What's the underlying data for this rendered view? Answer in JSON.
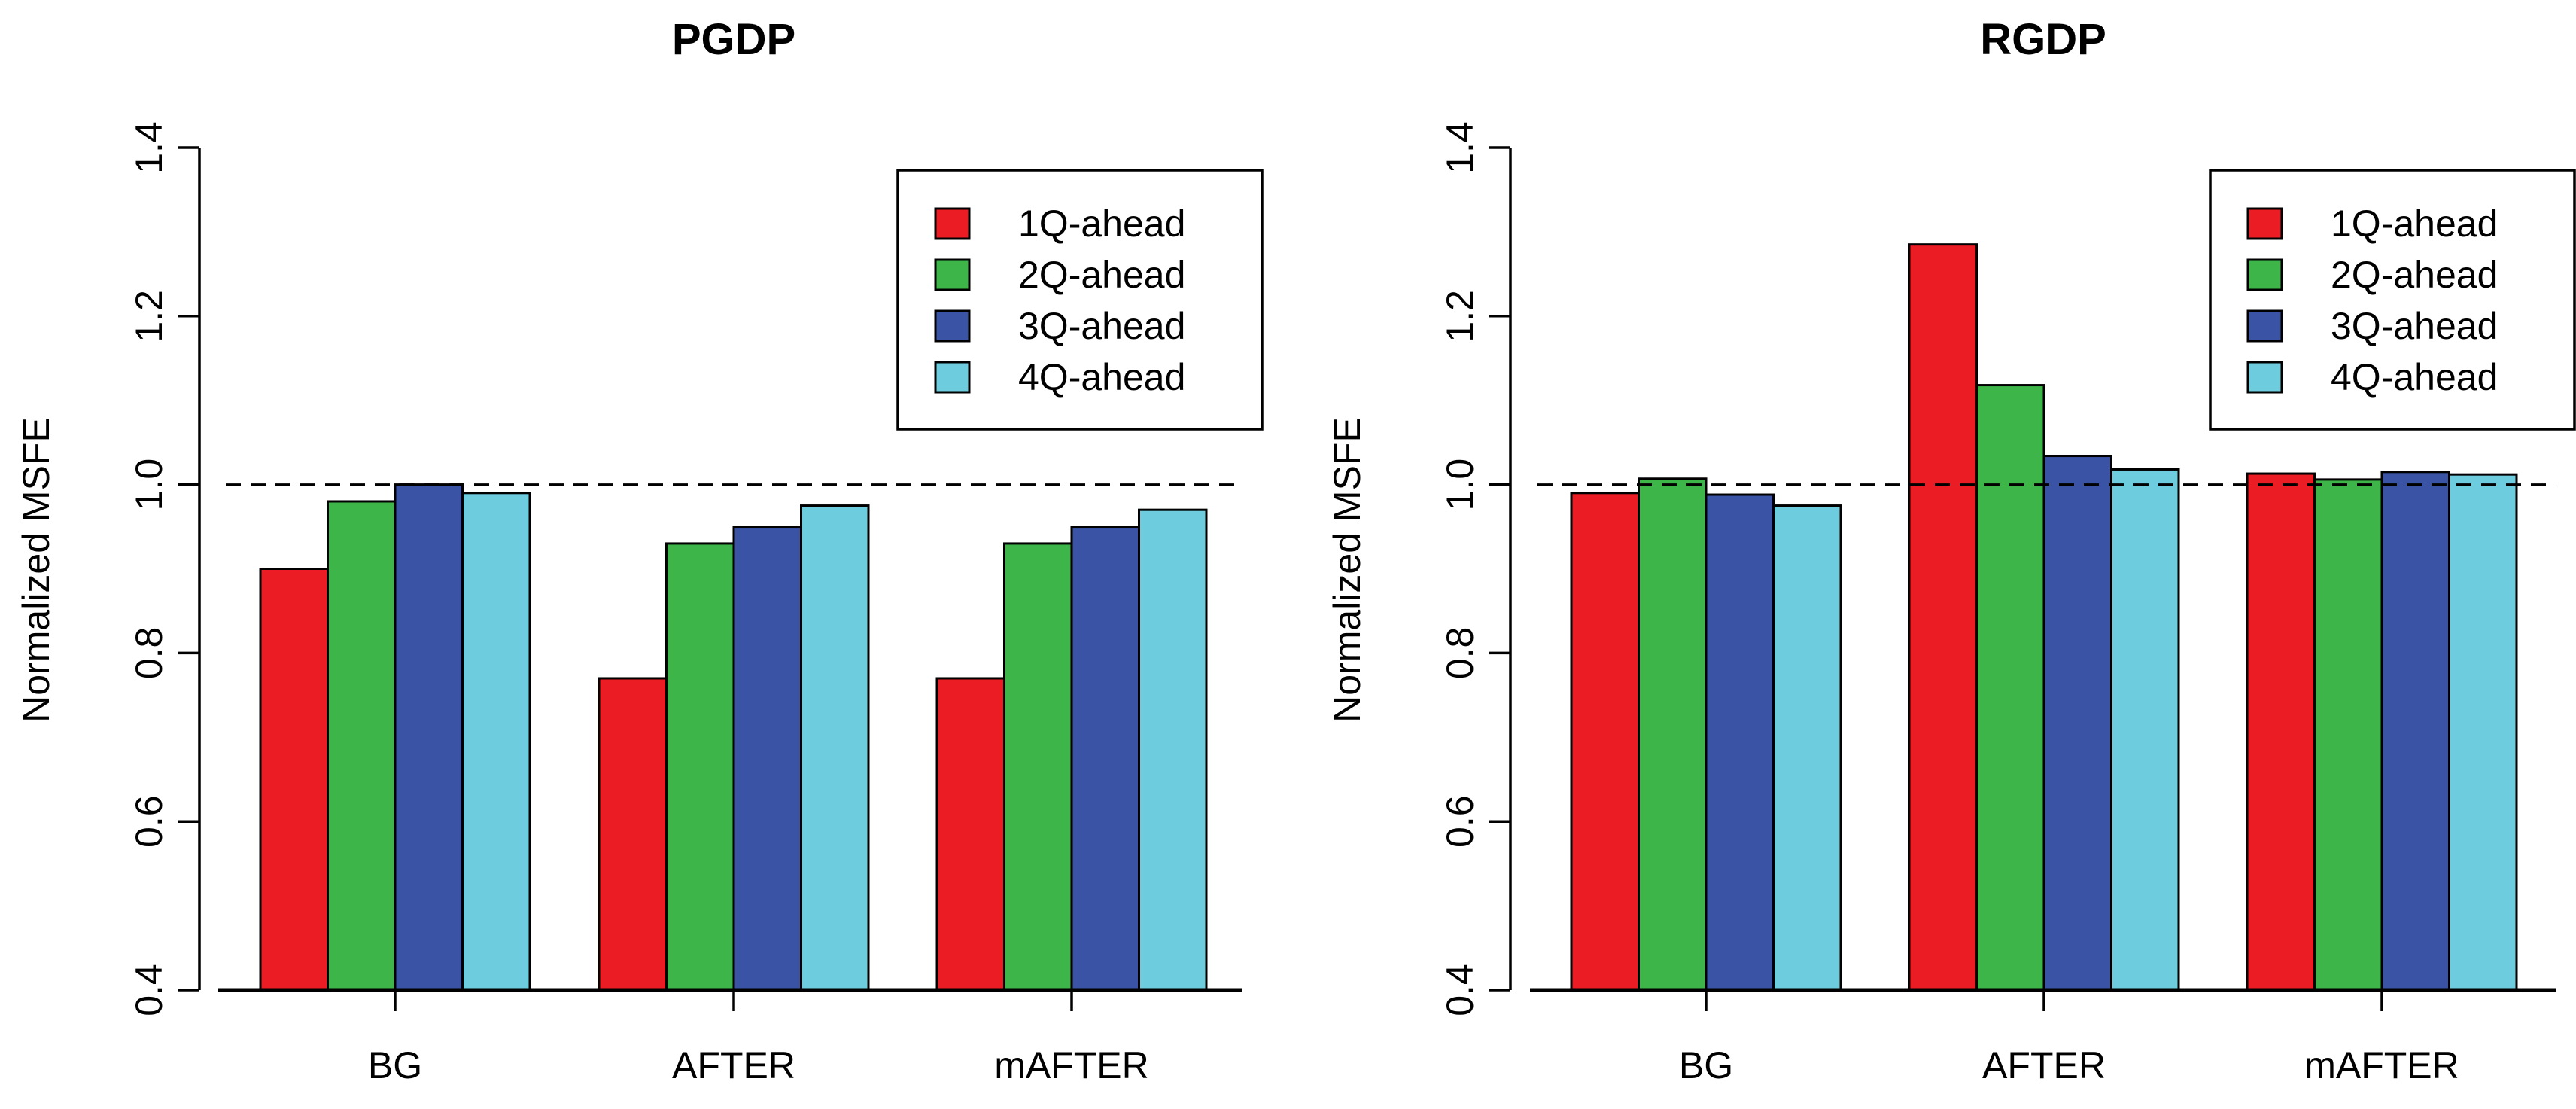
{
  "chart_data": [
    {
      "type": "bar",
      "title": "PGDP",
      "xlabel": "",
      "ylabel": "Normalized MSFE",
      "ylim": [
        0.4,
        1.4
      ],
      "yticks": [
        "0.4",
        "0.6",
        "0.8",
        "1.0",
        "1.2",
        "1.4"
      ],
      "reference_line": 1.0,
      "legend_position": "top-right",
      "categories": [
        "BG",
        "AFTER",
        "mAFTER"
      ],
      "series": [
        {
          "name": "1Q-ahead",
          "color": "#ec1c24",
          "values": [
            0.9,
            0.77,
            0.77
          ]
        },
        {
          "name": "2Q-ahead",
          "color": "#3db549",
          "values": [
            0.98,
            0.93,
            0.93
          ]
        },
        {
          "name": "3Q-ahead",
          "color": "#3a53a4",
          "values": [
            1.0,
            0.95,
            0.95
          ]
        },
        {
          "name": "4Q-ahead",
          "color": "#6dccdd",
          "values": [
            0.99,
            0.975,
            0.97
          ]
        }
      ]
    },
    {
      "type": "bar",
      "title": "RGDP",
      "xlabel": "",
      "ylabel": "Normalized MSFE",
      "ylim": [
        0.4,
        1.4
      ],
      "yticks": [
        "0.4",
        "0.6",
        "0.8",
        "1.0",
        "1.2",
        "1.4"
      ],
      "reference_line": 1.0,
      "legend_position": "top-right",
      "categories": [
        "BG",
        "AFTER",
        "mAFTER"
      ],
      "series": [
        {
          "name": "1Q-ahead",
          "color": "#ec1c24",
          "values": [
            0.99,
            1.285,
            1.013
          ]
        },
        {
          "name": "2Q-ahead",
          "color": "#3db549",
          "values": [
            1.007,
            1.118,
            1.006
          ]
        },
        {
          "name": "3Q-ahead",
          "color": "#3a53a4",
          "values": [
            0.988,
            1.034,
            1.015
          ]
        },
        {
          "name": "4Q-ahead",
          "color": "#6dccdd",
          "values": [
            0.975,
            1.018,
            1.012
          ]
        }
      ]
    }
  ]
}
